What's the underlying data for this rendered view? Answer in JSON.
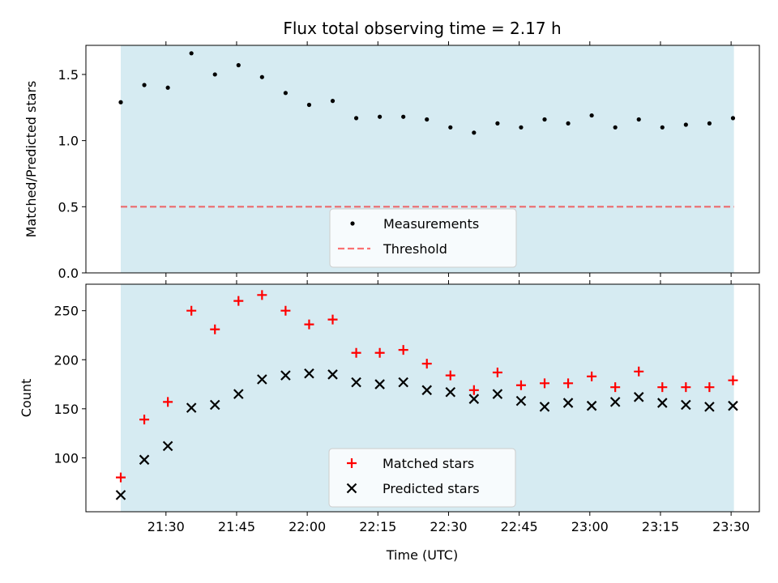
{
  "chart_data": {
    "type": "scatter",
    "title": "Flux total observing time = 2.17 h",
    "xlabel": "Time (UTC)",
    "x_ticks": [
      "21:30",
      "21:45",
      "22:00",
      "22:15",
      "22:30",
      "22:45",
      "23:00",
      "23:15",
      "23:30"
    ],
    "x_tick_minutes": [
      1290,
      1305,
      1320,
      1335,
      1350,
      1365,
      1380,
      1395,
      1410
    ],
    "xlim_minutes": [
      1273,
      1416
    ],
    "observing_window_minutes": [
      1280.4,
      1410.6
    ],
    "window_color": "#add8e6",
    "times": [
      "21:20",
      "21:25",
      "21:30",
      "21:35",
      "21:40",
      "21:45",
      "21:50",
      "21:55",
      "22:00",
      "22:05",
      "22:10",
      "22:15",
      "22:20",
      "22:25",
      "22:30",
      "22:35",
      "22:40",
      "22:45",
      "22:50",
      "22:55",
      "23:00",
      "23:05",
      "23:10",
      "23:15",
      "23:20",
      "23:25",
      "23:30"
    ],
    "x": [
      1280.4,
      1285.4,
      1290.4,
      1295.4,
      1300.4,
      1305.4,
      1310.4,
      1315.4,
      1320.4,
      1325.4,
      1330.4,
      1335.4,
      1340.4,
      1345.4,
      1350.4,
      1355.4,
      1360.4,
      1365.4,
      1370.4,
      1375.4,
      1380.4,
      1385.4,
      1390.4,
      1395.4,
      1400.4,
      1405.4,
      1410.4
    ],
    "panels": [
      {
        "ylabel": "Matched/Predicted stars",
        "ylim": [
          0,
          1.72
        ],
        "yticks": [
          0.0,
          0.5,
          1.0,
          1.5
        ],
        "ytick_labels": [
          "0.0",
          "0.5",
          "1.0",
          "1.5"
        ],
        "legend_position": "lower center",
        "series": [
          {
            "name": "Measurements",
            "marker": "dot",
            "color": "#000000",
            "values": [
              1.29,
              1.42,
              1.4,
              1.66,
              1.5,
              1.57,
              1.48,
              1.36,
              1.27,
              1.3,
              1.17,
              1.18,
              1.18,
              1.16,
              1.1,
              1.06,
              1.13,
              1.1,
              1.16,
              1.13,
              1.19,
              1.1,
              1.16,
              1.1,
              1.12,
              1.13,
              1.17
            ]
          },
          {
            "name": "Threshold",
            "marker": "dashed-line",
            "color": "#ff0000",
            "value": 0.5
          }
        ]
      },
      {
        "ylabel": "Count",
        "ylim": [
          45,
          277
        ],
        "yticks": [
          100,
          150,
          200,
          250
        ],
        "ytick_labels": [
          "100",
          "150",
          "200",
          "250"
        ],
        "legend_position": "lower center",
        "series": [
          {
            "name": "Matched stars",
            "marker": "plus",
            "color": "#ff0000",
            "values": [
              80,
              139,
              157,
              250,
              231,
              260,
              266,
              250,
              236,
              241,
              207,
              207,
              210,
              196,
              184,
              169,
              187,
              174,
              176,
              176,
              183,
              172,
              188,
              172,
              172,
              172,
              179
            ]
          },
          {
            "name": "Predicted stars",
            "marker": "x",
            "color": "#000000",
            "values": [
              62,
              98,
              112,
              151,
              154,
              165,
              180,
              184,
              186,
              185,
              177,
              175,
              177,
              169,
              167,
              160,
              165,
              158,
              152,
              156,
              153,
              157,
              162,
              156,
              154,
              152,
              153
            ]
          }
        ]
      }
    ]
  }
}
